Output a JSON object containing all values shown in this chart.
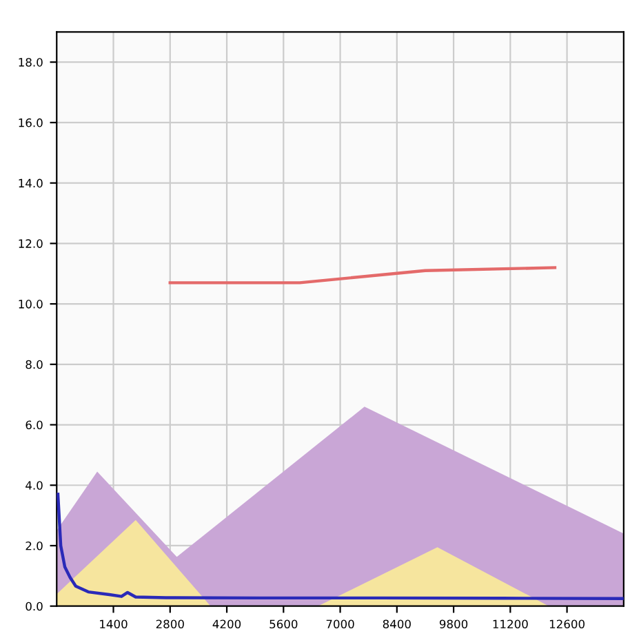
{
  "chart_data": {
    "type": "line",
    "xlim": [
      0,
      14000
    ],
    "xticks": [
      1400,
      2800,
      4200,
      5600,
      7000,
      8400,
      9800,
      11200,
      12600
    ],
    "ylim": [
      0,
      19
    ],
    "yticks": [
      {
        "value": 0,
        "label": "0.0"
      },
      {
        "value": 2,
        "label": "2.0"
      },
      {
        "value": 4,
        "label": "4.0"
      },
      {
        "value": 6,
        "label": "6.0"
      },
      {
        "value": 8,
        "label": "8.0"
      },
      {
        "value": 10,
        "label": "10.0"
      },
      {
        "value": 12,
        "label": "12.0"
      },
      {
        "value": 14,
        "label": "14.0"
      },
      {
        "value": 16,
        "label": "16.0"
      },
      {
        "value": 18,
        "label": "18.0"
      }
    ],
    "grid": true,
    "marker": "none",
    "line_style": "solid",
    "series": [
      {
        "type": "area",
        "color": "#c9a6d6",
        "x": [
          0,
          1000,
          4100
        ],
        "values": [
          2.5,
          4.45,
          0
        ]
      },
      {
        "type": "area",
        "color": "#c9a6d6",
        "x": [
          1450,
          7600,
          14000
        ],
        "values": [
          0,
          6.6,
          2.4
        ]
      },
      {
        "type": "area",
        "color": "#f6e59e",
        "x": [
          0,
          1950,
          3800
        ],
        "values": [
          0.4,
          2.85,
          0
        ]
      },
      {
        "type": "area",
        "color": "#f6e59e",
        "x": [
          6450,
          9400,
          12150
        ],
        "values": [
          0,
          1.95,
          0
        ]
      },
      {
        "color": "#e46a6a",
        "x": [
          2800,
          6000,
          9100,
          12300
        ],
        "values": [
          10.7,
          10.7,
          11.1,
          11.2
        ]
      },
      {
        "color": "#2a2ab8",
        "x": [
          30,
          100,
          200,
          330,
          470,
          780,
          1300,
          1600,
          1750,
          1950,
          2700,
          5000,
          8000,
          11000,
          14000
        ],
        "values": [
          3.7,
          2.0,
          1.3,
          0.95,
          0.66,
          0.47,
          0.38,
          0.32,
          0.45,
          0.3,
          0.28,
          0.27,
          0.27,
          0.26,
          0.25
        ]
      }
    ]
  }
}
